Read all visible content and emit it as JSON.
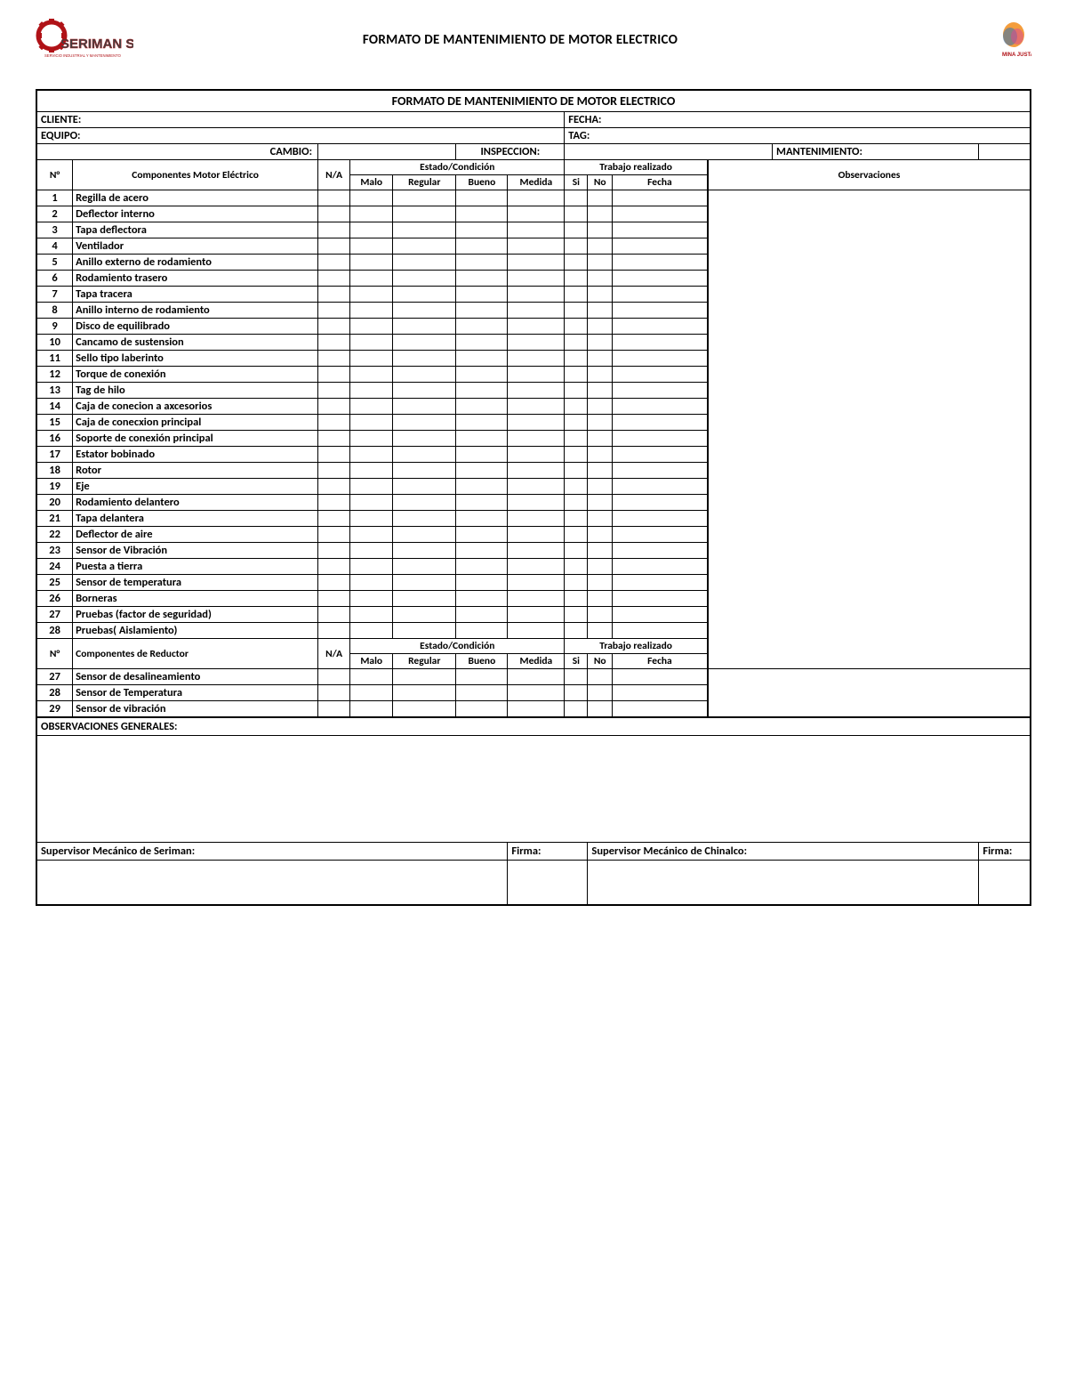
{
  "document": {
    "page_title": "FORMATO DE MANTENIMIENTO DE MOTOR ELECTRICO",
    "form_title": "FORMATO DE MANTENIMIENTO DE MOTOR ELECTRICO",
    "logos": {
      "left_name": "SERIMAN SAC",
      "left_subtitle": "SERVICIO INDUSTRIAL Y MANTENIMIENTO",
      "right_name": "MINA JUSTA"
    },
    "fields": {
      "cliente": "CLIENTE:",
      "fecha": "FECHA:",
      "equipo": "EQUIPO:",
      "tag": "TAG:",
      "cambio": "CAMBIO:",
      "inspeccion": "INSPECCION:",
      "mantenimiento": "MANTENIMIENTO:"
    },
    "col_headers": {
      "num": "N°",
      "comp_motor": "Componentes Motor Eléctrico",
      "na": "N/A",
      "estado": "Estado/Condición",
      "trabajo": "Trabajo realizado",
      "obs": "Observaciones",
      "malo": "Malo",
      "regular": "Regular",
      "bueno": "Bueno",
      "medida": "Medida",
      "si": "Si",
      "no": "No",
      "fecha_col": "Fecha",
      "comp_reductor": "Componentes de Reductor"
    },
    "motor_rows": [
      {
        "n": "1",
        "name": "Regilla de acero"
      },
      {
        "n": "2",
        "name": "Deflector interno"
      },
      {
        "n": "3",
        "name": "Tapa deflectora"
      },
      {
        "n": "4",
        "name": "Ventilador"
      },
      {
        "n": "5",
        "name": "Anillo externo de rodamiento"
      },
      {
        "n": "6",
        "name": "Rodamiento trasero"
      },
      {
        "n": "7",
        "name": "Tapa tracera"
      },
      {
        "n": "8",
        "name": "Anillo interno de rodamiento"
      },
      {
        "n": "9",
        "name": "Disco de equilibrado"
      },
      {
        "n": "10",
        "name": "Cancamo de sustension"
      },
      {
        "n": "11",
        "name": "Sello tipo laberinto"
      },
      {
        "n": "12",
        "name": "Torque de conexión"
      },
      {
        "n": "13",
        "name": "Tag de hilo"
      },
      {
        "n": "14",
        "name": "Caja de conecion a axcesorios"
      },
      {
        "n": "15",
        "name": "Caja de conecxion principal"
      },
      {
        "n": "16",
        "name": "Soporte de conexión principal"
      },
      {
        "n": "17",
        "name": "Estator bobinado"
      },
      {
        "n": "18",
        "name": "Rotor"
      },
      {
        "n": "19",
        "name": "Eje"
      },
      {
        "n": "20",
        "name": "Rodamiento delantero"
      },
      {
        "n": "21",
        "name": "Tapa delantera"
      },
      {
        "n": "22",
        "name": "Deflector de aire"
      },
      {
        "n": "23",
        "name": "Sensor de Vibración"
      },
      {
        "n": "24",
        "name": "Puesta a tierra"
      },
      {
        "n": "25",
        "name": "Sensor de temperatura"
      },
      {
        "n": "26",
        "name": "Borneras"
      },
      {
        "n": "27",
        "name": "Pruebas (factor de seguridad)"
      },
      {
        "n": "28",
        "name": "Pruebas( Aislamiento)"
      }
    ],
    "reductor_rows": [
      {
        "n": "27",
        "name": "Sensor de desalineamiento"
      },
      {
        "n": "28",
        "name": "Sensor de Temperatura"
      },
      {
        "n": "29",
        "name": "Sensor de vibración"
      }
    ],
    "obs_generales": "OBSERVACIONES GENERALES:",
    "sig": {
      "sup_seriman": "Supervisor Mecánico de Seriman:",
      "firma": "Firma:",
      "sup_chinalco": "Supervisor Mecánico de Chinalco:"
    }
  },
  "styling": {
    "page_bg": "#ffffff",
    "border_color": "#000000",
    "outer_border_width": 2.5,
    "inner_border_width": 1,
    "font_family": "Calibri",
    "title_fontsize": 15,
    "header_fontsize": 12.5,
    "body_fontsize": 12.5,
    "col_widths_percent": {
      "num": 2.8,
      "component": 19,
      "na": 2.5,
      "malo": 3.3,
      "regular": 4.9,
      "bueno": 4.0,
      "medida": 4.4,
      "si": 1.8,
      "no": 1.9,
      "fecha": 7.4,
      "obs": 25
    },
    "logo_left_color": "#b01217",
    "logo_right_colors": [
      "#f28c1a",
      "#2b6fb5",
      "#d94b8f"
    ]
  }
}
